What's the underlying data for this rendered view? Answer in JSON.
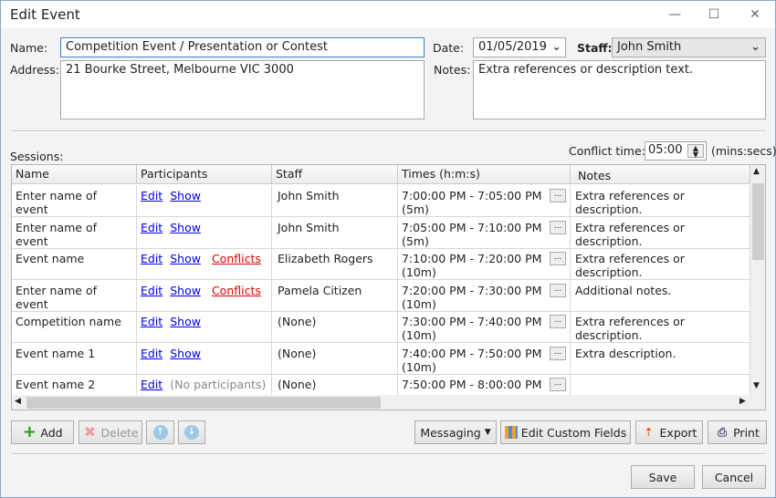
{
  "window": {
    "title": "Edit Event",
    "minimize": "—",
    "maximize": "☐",
    "close": "✕"
  },
  "form": {
    "name_label": "Name:",
    "name_value": "Competition Event / Presentation or Contest",
    "address_label": "Address:",
    "address_value": "21 Bourke Street, Melbourne VIC 3000",
    "date_label": "Date:",
    "date_value": "01/05/2019",
    "staff_label": "Staff:",
    "staff_value": "John Smith",
    "notes_label": "Notes:",
    "notes_value": "Extra references or description text."
  },
  "sessions": {
    "label": "Sessions:",
    "conflict_label": "Conflict time:",
    "conflict_value": "05:00",
    "conflict_unit": "(mins:secs)",
    "columns": [
      "Name",
      "Participants",
      "Staff",
      "Times (h:m:s)",
      "Notes"
    ],
    "edit_link": "Edit",
    "show_link": "Show",
    "conflicts_link": "Conflicts",
    "dots": "...",
    "rows": [
      {
        "name": "Enter name of event",
        "show": true,
        "conflicts": false,
        "staff": "John Smith",
        "times": "7:00:00 PM - 7:05:00 PM",
        "duration": "(5m)",
        "notes": "Extra references or description."
      },
      {
        "name": "Enter name of event",
        "show": true,
        "conflicts": false,
        "staff": "John Smith",
        "times": "7:05:00 PM - 7:10:00 PM",
        "duration": "(5m)",
        "notes": "Extra references or description."
      },
      {
        "name": "Event name",
        "show": true,
        "conflicts": true,
        "staff": "Elizabeth Rogers",
        "times": "7:10:00 PM - 7:20:00 PM",
        "duration": "(10m)",
        "notes": "Extra references or description."
      },
      {
        "name": "Enter name of event",
        "show": true,
        "conflicts": true,
        "staff": "Pamela Citizen",
        "times": "7:20:00 PM - 7:30:00 PM",
        "duration": "(10m)",
        "notes": "Additional notes."
      },
      {
        "name": "Competition name",
        "show": true,
        "conflicts": false,
        "staff": "(None)",
        "times": "7:30:00 PM - 7:40:00 PM",
        "duration": "(10m)",
        "notes": "Extra references or description."
      },
      {
        "name": "Event name 1",
        "show": true,
        "conflicts": false,
        "staff": "(None)",
        "times": "7:40:00 PM - 7:50:00 PM",
        "duration": "(10m)",
        "notes": "Extra description."
      },
      {
        "name": "Event name 2",
        "show": false,
        "no_participants": "(No participants)",
        "conflicts": false,
        "staff": "(None)",
        "times": "7:50:00 PM - 8:00:00 PM",
        "duration": "",
        "notes": ""
      }
    ]
  },
  "toolbar": {
    "add": "Add",
    "delete": "Delete",
    "messaging": "Messaging",
    "edit_custom_fields": "Edit Custom Fields",
    "export": "Export",
    "print": "Print"
  },
  "footer": {
    "save": "Save",
    "cancel": "Cancel"
  }
}
